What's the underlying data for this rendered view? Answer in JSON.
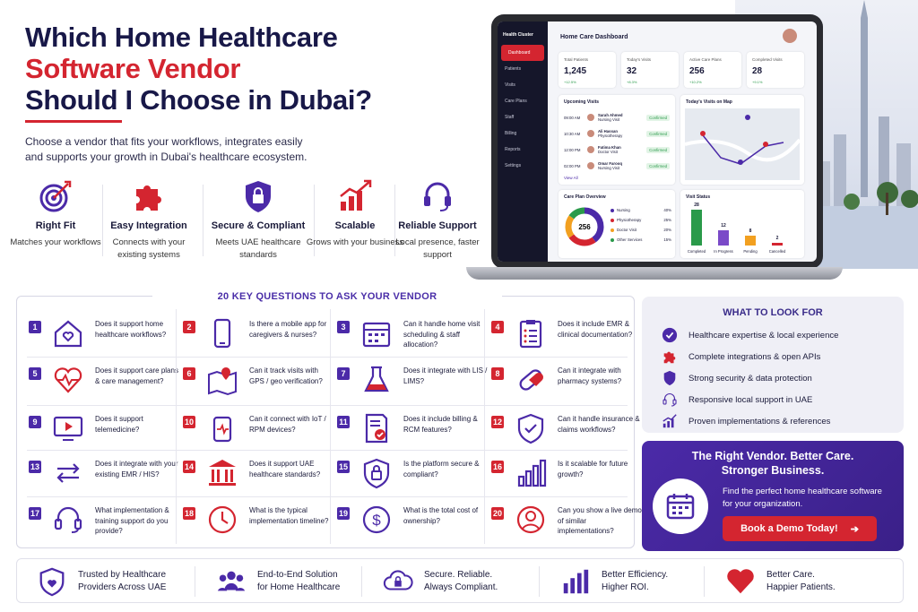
{
  "header": {
    "line1": "Which Home Healthcare",
    "line2": "Software Vendor",
    "line3": "Should I Choose in Dubai?",
    "intro": "Choose a vendor that fits your workflows, integrates easily and supports your growth in Dubai's healthcare ecosystem."
  },
  "features": [
    {
      "title": "Right Fit",
      "desc": "Matches your workflows",
      "icon": "target-icon"
    },
    {
      "title": "Easy Integration",
      "desc": "Connects with your existing systems",
      "icon": "puzzle-icon"
    },
    {
      "title": "Secure & Compliant",
      "desc": "Meets UAE healthcare standards",
      "icon": "shield-lock-icon"
    },
    {
      "title": "Scalable",
      "desc": "Grows with your business",
      "icon": "growth-chart-icon"
    },
    {
      "title": "Reliable Support",
      "desc": "Local presence, faster support",
      "icon": "headset-icon"
    }
  ],
  "dashboard": {
    "brand": "Health Cluster",
    "title": "Home Care Dashboard",
    "nav": [
      "Dashboard",
      "Patients",
      "Visits",
      "Care Plans",
      "Staff",
      "Billing",
      "Reports",
      "Settings"
    ],
    "stats": [
      {
        "label": "Total Patients",
        "value": "1,245",
        "delta": "+12.5%"
      },
      {
        "label": "Today's Visits",
        "value": "32",
        "delta": "+8.3%"
      },
      {
        "label": "Active Care Plans",
        "value": "256",
        "delta": "+10.2%"
      },
      {
        "label": "Completed Visits",
        "value": "28",
        "delta": "+9.1%"
      }
    ],
    "upcoming_title": "Upcoming Visits",
    "visits": [
      {
        "time": "09:00 AM",
        "name": "Sarah Ahmed",
        "type": "Nursing Visit",
        "status": "Confirmed"
      },
      {
        "time": "10:30 AM",
        "name": "Ali Hassan",
        "type": "Physiotherapy",
        "status": "Confirmed"
      },
      {
        "time": "12:00 PM",
        "name": "Fatima Khan",
        "type": "Doctor Visit",
        "status": "Confirmed"
      },
      {
        "time": "02:00 PM",
        "name": "Omar Farooq",
        "type": "Nursing Visit",
        "status": "Confirmed"
      }
    ],
    "view_all": "View All",
    "map_title": "Today's Visits on Map",
    "care_title": "Care Plan Overview",
    "care_total": "256",
    "care_rows": [
      {
        "name": "Nursing",
        "pct": "40%",
        "color": "#4b2aa8"
      },
      {
        "name": "Physiotherapy",
        "pct": "25%",
        "color": "#d42530"
      },
      {
        "name": "Doctor Visit",
        "pct": "20%",
        "color": "#f2a020"
      },
      {
        "name": "Other Services",
        "pct": "15%",
        "color": "#2a9a4a"
      }
    ],
    "status_title": "Visit Status",
    "status_bars": [
      {
        "label": "Completed",
        "value": 28,
        "color": "#2a9a4a"
      },
      {
        "label": "In Progress",
        "value": 12,
        "color": "#7a4ac8"
      },
      {
        "label": "Pending",
        "value": 8,
        "color": "#f2a020"
      },
      {
        "label": "Cancelled",
        "value": 2,
        "color": "#d42530"
      }
    ]
  },
  "questions_title": "20 KEY QUESTIONS TO ASK YOUR VENDOR",
  "questions": [
    {
      "n": "1",
      "text": "Does it support home healthcare workflows?",
      "icon": "house-heart-icon"
    },
    {
      "n": "2",
      "text": "Is there a mobile app for caregivers & nurses?",
      "icon": "smartphone-icon"
    },
    {
      "n": "3",
      "text": "Can it handle home visit scheduling & staff allocation?",
      "icon": "calendar-icon"
    },
    {
      "n": "4",
      "text": "Does it include EMR & clinical documentation?",
      "icon": "clipboard-icon"
    },
    {
      "n": "5",
      "text": "Does it support care plans & care management?",
      "icon": "heart-pulse-icon"
    },
    {
      "n": "6",
      "text": "Can it track visits with GPS / geo verification?",
      "icon": "map-pin-icon"
    },
    {
      "n": "7",
      "text": "Does it integrate with LIS / LIMS?",
      "icon": "flask-icon"
    },
    {
      "n": "8",
      "text": "Can it integrate with pharmacy systems?",
      "icon": "pill-icon"
    },
    {
      "n": "9",
      "text": "Does it support telemedicine?",
      "icon": "video-icon"
    },
    {
      "n": "10",
      "text": "Can it connect with IoT / RPM devices?",
      "icon": "device-icon"
    },
    {
      "n": "11",
      "text": "Does it include billing & RCM features?",
      "icon": "invoice-icon"
    },
    {
      "n": "12",
      "text": "Can it handle insurance & claims workflows?",
      "icon": "shield-check-icon"
    },
    {
      "n": "13",
      "text": "Does it integrate with your existing EMR / HIS?",
      "icon": "arrows-icon"
    },
    {
      "n": "14",
      "text": "Does it support UAE healthcare standards?",
      "icon": "building-icon"
    },
    {
      "n": "15",
      "text": "Is the platform secure & compliant?",
      "icon": "shield-lock-icon"
    },
    {
      "n": "16",
      "text": "Is it scalable for future growth?",
      "icon": "bars-icon"
    },
    {
      "n": "17",
      "text": "What implementation & training support do you provide?",
      "icon": "headset-icon"
    },
    {
      "n": "18",
      "text": "What is the typical implementation timeline?",
      "icon": "clock-icon"
    },
    {
      "n": "19",
      "text": "What is the total cost of ownership?",
      "icon": "dollar-icon"
    },
    {
      "n": "20",
      "text": "Can you show a live demo of similar implementations?",
      "icon": "user-icon"
    }
  ],
  "what_to_look": {
    "title": "WHAT TO LOOK FOR",
    "items": [
      {
        "text": "Healthcare expertise & local experience",
        "icon": "check-icon"
      },
      {
        "text": "Complete integrations & open APIs",
        "icon": "puzzle-icon"
      },
      {
        "text": "Strong security & data protection",
        "icon": "shield-icon"
      },
      {
        "text": "Responsive local support in UAE",
        "icon": "headset-icon"
      },
      {
        "text": "Proven implementations & references",
        "icon": "growth-icon"
      }
    ]
  },
  "promo": {
    "title1": "The Right Vendor. Better Care.",
    "title2": "Stronger Business.",
    "desc": "Find the perfect home healthcare software for your organization.",
    "button": "Book a Demo Today!"
  },
  "footer": [
    {
      "l1": "Trusted by Healthcare",
      "l2": "Providers Across UAE",
      "icon": "shield-heart-icon"
    },
    {
      "l1": "End-to-End Solution",
      "l2": "for Home Healthcare",
      "icon": "team-icon"
    },
    {
      "l1": "Secure. Reliable.",
      "l2": "Always Compliant.",
      "icon": "cloud-lock-icon"
    },
    {
      "l1": "Better Efficiency.",
      "l2": "Higher ROI.",
      "icon": "bar-chart-icon"
    },
    {
      "l1": "Better Care.",
      "l2": "Happier Patients.",
      "icon": "heart-icon"
    }
  ]
}
